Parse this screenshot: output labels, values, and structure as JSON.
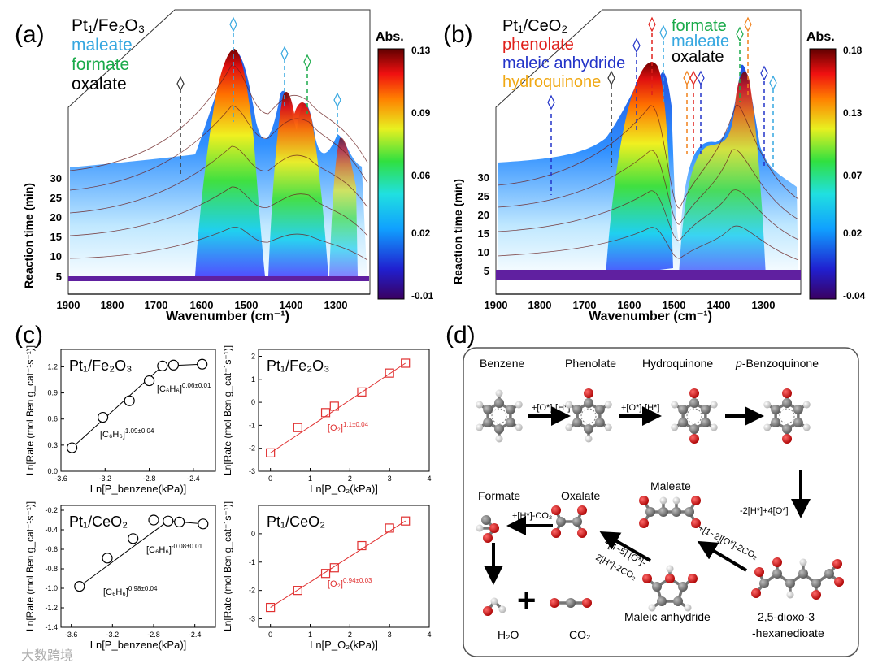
{
  "panel_a": {
    "letter": "(a)",
    "legend": [
      {
        "label": "Pt₁/Fe₂O₃",
        "color": "#000000"
      },
      {
        "label": "maleate",
        "color": "#35a7e0"
      },
      {
        "label": "formate",
        "color": "#1aaa4a"
      },
      {
        "label": "oxalate",
        "color": "#000000"
      }
    ],
    "xlabel": "Wavenumber (cm⁻¹)",
    "xticks": [
      "1900",
      "1800",
      "1700",
      "1600",
      "1500",
      "1400",
      "1300"
    ],
    "ylabel": "Reaction time (min)",
    "yticks": [
      "5",
      "10",
      "15",
      "20",
      "25",
      "30"
    ],
    "colorbar": {
      "title": "Abs.",
      "ticks": [
        "0.13",
        "0.09",
        "0.06",
        "0.02",
        "-0.01"
      ]
    }
  },
  "panel_b": {
    "letter": "(b)",
    "legend_left": [
      {
        "label": "Pt₁/CeO₂",
        "color": "#000000"
      },
      {
        "label": "phenolate",
        "color": "#e0201b"
      },
      {
        "label": "maleic anhydride",
        "color": "#2233c8"
      },
      {
        "label": "hydroquinone",
        "color": "#f0a814"
      }
    ],
    "legend_right": [
      {
        "label": "formate",
        "color": "#1aaa4a"
      },
      {
        "label": "maleate",
        "color": "#35a7e0"
      },
      {
        "label": "oxalate",
        "color": "#000000"
      }
    ],
    "xlabel": "Wavenumber (cm⁻¹)",
    "xticks": [
      "1900",
      "1800",
      "1700",
      "1600",
      "1500",
      "1400",
      "1300"
    ],
    "ylabel": "Reaction time (min)",
    "yticks": [
      "5",
      "10",
      "15",
      "20",
      "25",
      "30"
    ],
    "colorbar": {
      "title": "Abs.",
      "ticks": [
        "0.18",
        "0.13",
        "0.07",
        "0.02",
        "-0.04"
      ]
    }
  },
  "panel_c": {
    "letter": "(c)",
    "ylabel": "Ln[Rate (mol Ben g_cat⁻¹s⁻¹)]"
  },
  "panel_d": {
    "letter": "(d)",
    "labels": {
      "benzene": "Benzene",
      "phenolate": "Phenolate",
      "hydroquinone": "Hydroquinone",
      "p_prefix": "p",
      "benzoquinone": "-Benzoquinone",
      "formate": "Formate",
      "oxalate": "Oxalate",
      "maleate": "Maleate",
      "maleic_anhydride": "Maleic anhydride",
      "dioxo1": "2,5-dioxo-3",
      "dioxo2": "-hexanedioate",
      "h2o": "H₂O",
      "co2": "CO₂",
      "plus": "+"
    },
    "arrows": {
      "a1": "+[O*]-[H*]",
      "a2": "+[O*]-[H*]",
      "a3": "-2[H*]+4[O*]",
      "a4": "+[1~2][O*]-2CO₂",
      "a5a": "+[4~5] [O*]-",
      "a5b": "2[H*]-2CO₂",
      "a6": "+[H*]-CO₂"
    }
  },
  "watermark": "大数跨境",
  "chart_data": [
    {
      "type": "scatter",
      "title": "Pt₁/Fe₂O₃",
      "xlabel": "Ln[P_benzene(kPa)]",
      "ylabel": "Ln[Rate (mol Ben g_cat⁻¹s⁻¹)]",
      "xlim": [
        -3.6,
        -2.2
      ],
      "ylim": [
        0.0,
        1.4
      ],
      "xticks": [
        "-3.6",
        "-3.2",
        "-2.8",
        "-2.4"
      ],
      "yticks": [
        "0.0",
        "0.3",
        "0.6",
        "0.9",
        "1.2"
      ],
      "x": [
        -3.5,
        -3.22,
        -2.98,
        -2.8,
        -2.68,
        -2.58,
        -2.32
      ],
      "y": [
        0.27,
        0.62,
        0.81,
        1.04,
        1.21,
        1.22,
        1.23
      ],
      "annotations": [
        "[C₆H₆]^1.09±0.04",
        "[C₆H₆]^0.06±0.01"
      ],
      "color": "#000000",
      "marker": "circle"
    },
    {
      "type": "scatter",
      "title": "Pt₁/Fe₂O₃",
      "xlabel": "Ln[P_O₂(kPa)]",
      "ylabel": "Ln[Rate (mol Ben g_cat⁻¹s⁻¹)]",
      "xlim": [
        -0.3,
        4.0
      ],
      "ylim": [
        -3.0,
        2.3
      ],
      "xticks": [
        "0",
        "1",
        "2",
        "3",
        "4"
      ],
      "yticks": [
        "-3",
        "-2",
        "-1",
        "0",
        "1",
        "2"
      ],
      "x": [
        0.0,
        0.69,
        1.39,
        1.61,
        2.3,
        3.0,
        3.4
      ],
      "y": [
        -2.2,
        -1.1,
        -0.45,
        -0.17,
        0.45,
        1.27,
        1.7
      ],
      "annotations": [
        "[O₂]^1.1±0.04"
      ],
      "color": "#e03030",
      "marker": "square"
    },
    {
      "type": "scatter",
      "title": "Pt₁/CeO₂",
      "xlabel": "Ln[P_benzene(kPa)]",
      "ylabel": "Ln[Rate (mol Ben g_cat⁻¹s⁻¹)]",
      "xlim": [
        -3.7,
        -2.2
      ],
      "ylim": [
        -1.4,
        -0.15
      ],
      "xticks": [
        "-3.6",
        "-3.2",
        "-2.8",
        "-2.4"
      ],
      "yticks": [
        "-0.2",
        "-0.4",
        "-0.6",
        "-0.8",
        "-1.0",
        "-1.2",
        "-1.4"
      ],
      "x": [
        -3.52,
        -3.25,
        -3.0,
        -2.8,
        -2.66,
        -2.55,
        -2.32
      ],
      "y": [
        -0.98,
        -0.69,
        -0.49,
        -0.3,
        -0.31,
        -0.32,
        -0.34
      ],
      "annotations": [
        "[C₆H₆]^0.98±0.04",
        "[C₆H₆]^-0.08±0.01"
      ],
      "color": "#000000",
      "marker": "circle"
    },
    {
      "type": "scatter",
      "title": "Pt₁/CeO₂",
      "xlabel": "Ln[P_O₂(kPa)]",
      "ylabel": "Ln[Rate (mol Ben g_cat⁻¹s⁻¹)]",
      "xlim": [
        -0.3,
        4.0
      ],
      "ylim": [
        -3.3,
        1.0
      ],
      "xticks": [
        "0",
        "1",
        "2",
        "3",
        "4"
      ],
      "yticks": [
        "-3",
        "-2",
        "-1",
        "0"
      ],
      "x": [
        0.0,
        0.69,
        1.39,
        1.61,
        2.3,
        3.0,
        3.4
      ],
      "y": [
        -2.6,
        -2.0,
        -1.4,
        -1.2,
        -0.42,
        0.2,
        0.45
      ],
      "annotations": [
        "[O₂]^0.94±0.03"
      ],
      "color": "#e03030",
      "marker": "square"
    }
  ]
}
